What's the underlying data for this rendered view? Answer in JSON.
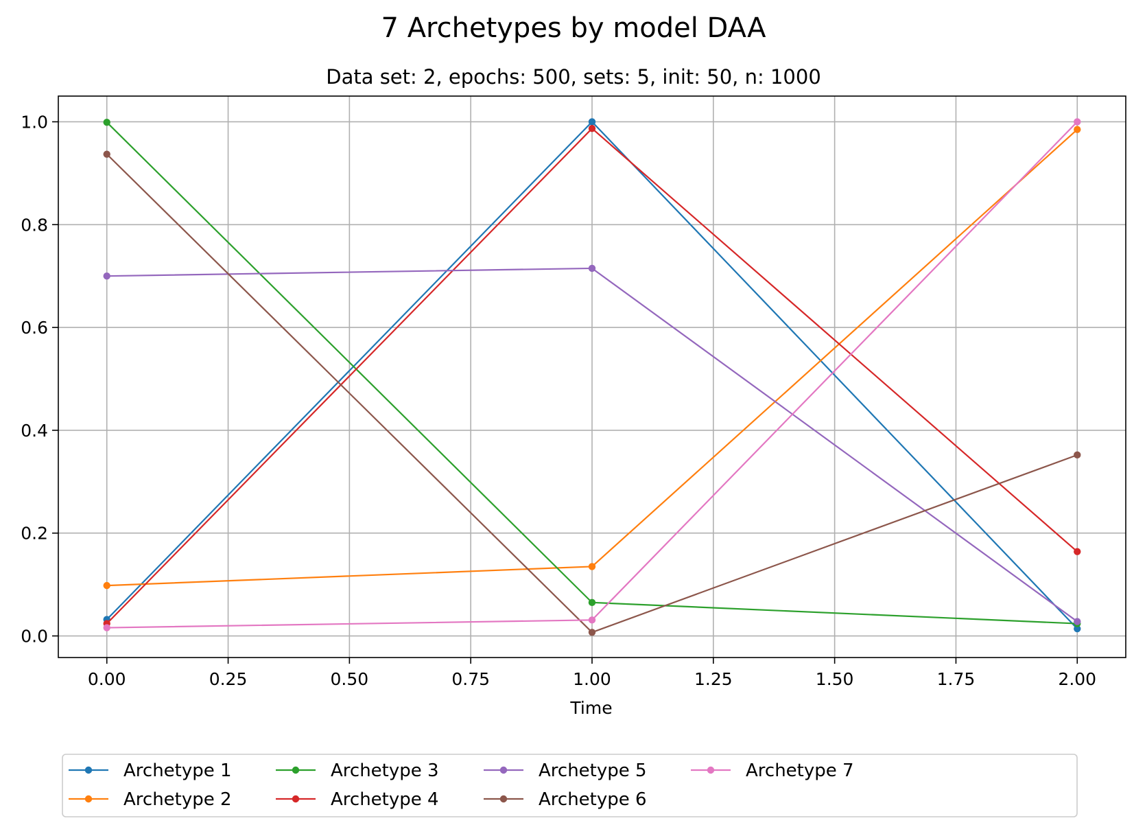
{
  "chart_data": {
    "type": "line",
    "title": "7 Archetypes by model DAA",
    "subtitle": "Data set: 2, epochs: 500, sets: 5, init: 50, n: 1000",
    "xlabel": "Time",
    "ylabel": "",
    "x": [
      0,
      1,
      2
    ],
    "xlim": [
      -0.1,
      2.1
    ],
    "ylim": [
      -0.042,
      1.05
    ],
    "xticks": [
      "0.00",
      "0.25",
      "0.50",
      "0.75",
      "1.00",
      "1.25",
      "1.50",
      "1.75",
      "2.00"
    ],
    "yticks": [
      "0.0",
      "0.2",
      "0.4",
      "0.6",
      "0.8",
      "1.0"
    ],
    "grid": true,
    "legend_position": "bottom-center",
    "series": [
      {
        "name": "Archetype 1",
        "color": "#1f77b4",
        "values": [
          0.032,
          1.0,
          0.014
        ]
      },
      {
        "name": "Archetype 2",
        "color": "#ff7f0e",
        "values": [
          0.098,
          0.135,
          0.985
        ]
      },
      {
        "name": "Archetype 3",
        "color": "#2ca02c",
        "values": [
          0.999,
          0.065,
          0.024
        ]
      },
      {
        "name": "Archetype 4",
        "color": "#d62728",
        "values": [
          0.024,
          0.987,
          0.164
        ]
      },
      {
        "name": "Archetype 5",
        "color": "#9467bd",
        "values": [
          0.7,
          0.715,
          0.028
        ]
      },
      {
        "name": "Archetype 6",
        "color": "#8c564b",
        "values": [
          0.937,
          0.007,
          0.352
        ]
      },
      {
        "name": "Archetype 7",
        "color": "#e377c2",
        "values": [
          0.016,
          0.031,
          1.0
        ]
      }
    ]
  }
}
